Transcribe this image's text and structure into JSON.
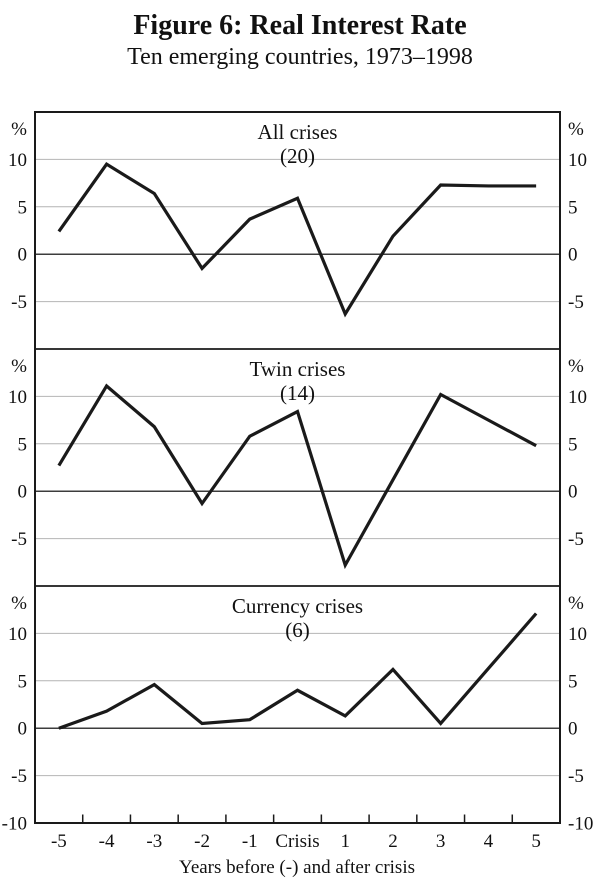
{
  "figure": {
    "title": "Figure 6: Real Interest Rate",
    "subtitle": "Ten emerging countries, 1973–1998"
  },
  "chart_data": {
    "type": "line",
    "categories": [
      "-5",
      "-4",
      "-3",
      "-2",
      "-1",
      "Crisis",
      "1",
      "2",
      "3",
      "4",
      "5"
    ],
    "x_axis_label": "Years before (-) and after crisis",
    "y_unit": "%",
    "y_unit_sides": [
      "left",
      "right"
    ],
    "ylim": [
      -10,
      15
    ],
    "yticks": [
      10,
      5,
      0,
      -5,
      -10
    ],
    "grid": true,
    "legend": "none",
    "line_color": "#1a1a1a",
    "grid_color": "#b4b4b4",
    "zero_line_color": "#3c3c3c",
    "frame_color": "#1a1a1a",
    "panels": [
      {
        "title": "All crises",
        "count_label": "(20)",
        "values": [
          2.4,
          9.5,
          6.4,
          -1.5,
          3.7,
          5.9,
          -6.3,
          1.9,
          7.3,
          7.2,
          7.2
        ]
      },
      {
        "title": "Twin crises",
        "count_label": "(14)",
        "values": [
          2.7,
          11.1,
          6.8,
          -1.3,
          5.8,
          8.4,
          -7.8,
          1.2,
          10.2,
          7.5,
          4.8
        ]
      },
      {
        "title": "Currency crises",
        "count_label": "(6)",
        "values": [
          0.0,
          1.8,
          4.6,
          0.5,
          0.9,
          4.0,
          1.3,
          6.2,
          0.5,
          6.3,
          12.1
        ]
      }
    ]
  }
}
